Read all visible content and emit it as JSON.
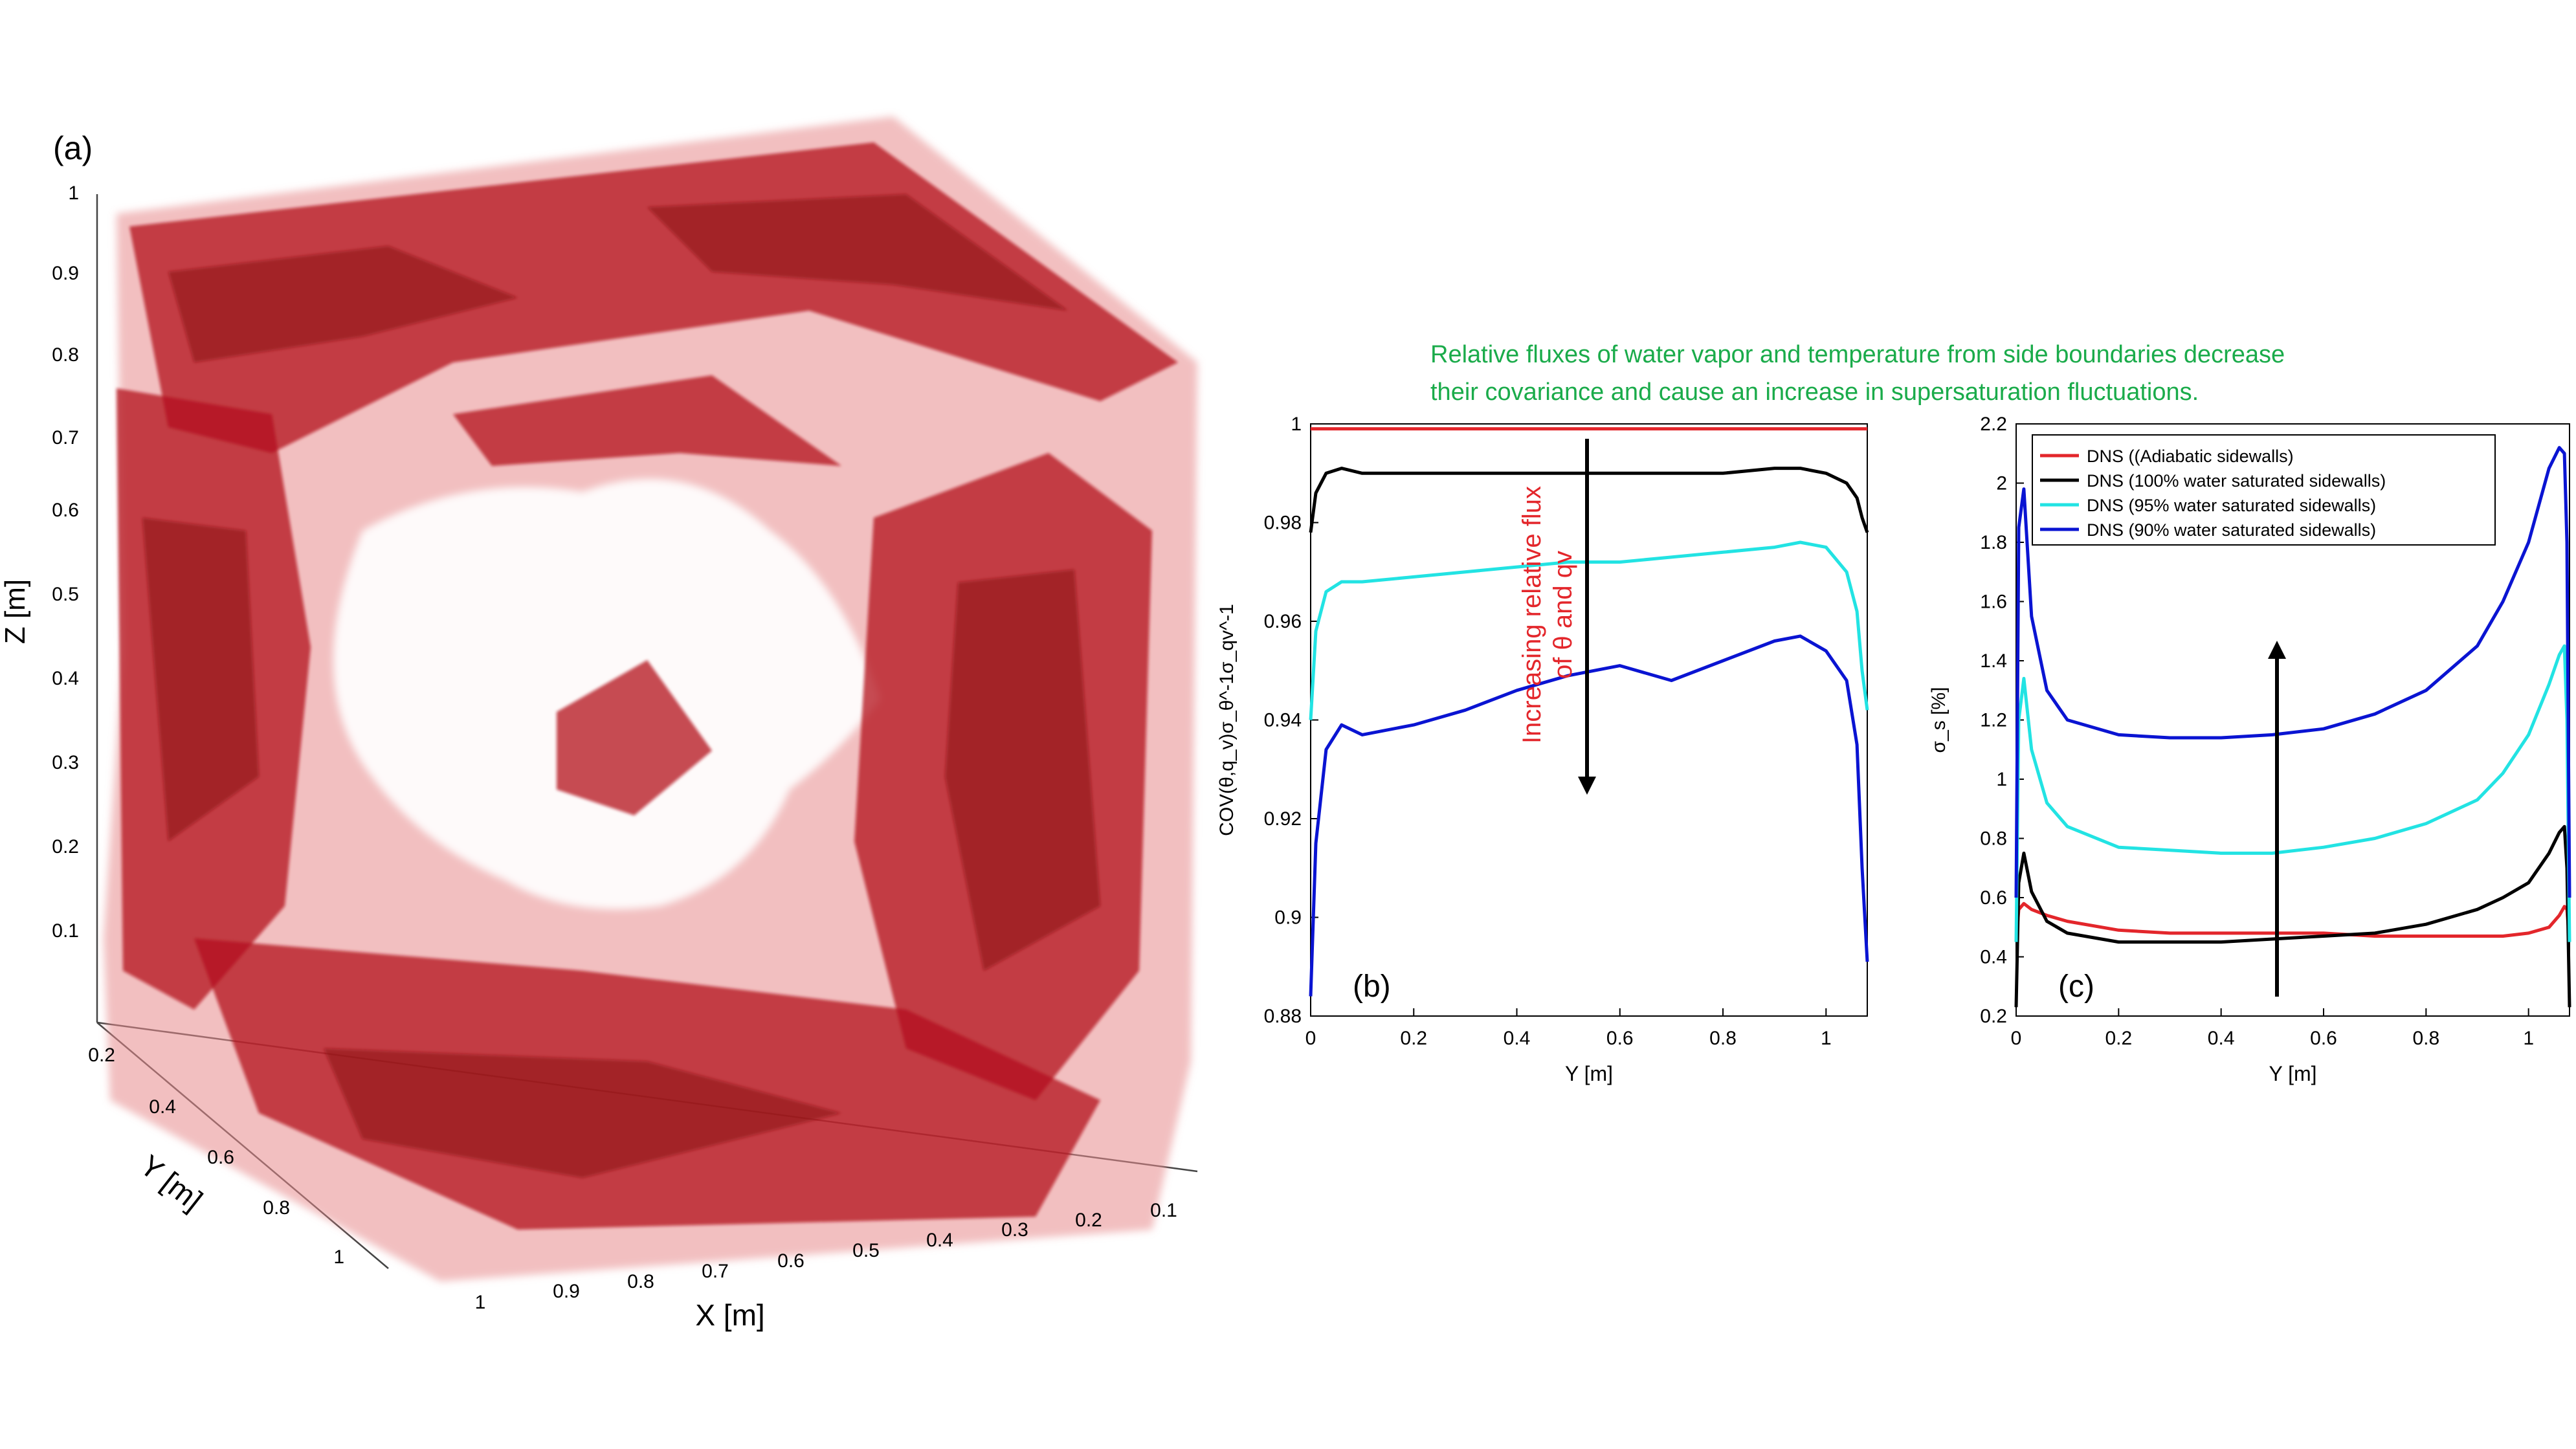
{
  "panels": {
    "a": {
      "label": "(a)",
      "z_axis": {
        "label": "Z [m]",
        "ticks": [
          "0.1",
          "0.2",
          "0.3",
          "0.4",
          "0.5",
          "0.6",
          "0.7",
          "0.8",
          "0.9",
          "1"
        ]
      },
      "y_axis": {
        "label": "Y [m]",
        "ticks": [
          "0.2",
          "0.4",
          "0.6",
          "0.8",
          "1"
        ]
      },
      "x_axis": {
        "label": "X [m]",
        "ticks": [
          "1",
          "0.9",
          "0.8",
          "0.7",
          "0.6",
          "0.5",
          "0.4",
          "0.3",
          "0.2",
          "0.1"
        ]
      },
      "colors": {
        "iso_dark": "#c0141c",
        "iso_light": "#e88a8c"
      }
    },
    "b": {
      "label": "(b)",
      "arrow_text_1": "Increasing relative flux",
      "arrow_text_2": "of θ and qv"
    },
    "c": {
      "label": "(c)"
    }
  },
  "annotation": {
    "line1": "Relative fluxes of water vapor and temperature from side boundaries decrease",
    "line2": "their covariance and cause an increase in supersaturation fluctuations.",
    "color": "#1aab4a"
  },
  "chart_data": [
    {
      "type": "line",
      "panel": "b",
      "xlabel": "Y [m]",
      "ylabel": "COV(θ,q_v)σ_θ^-1σ_qv^-1",
      "xlim": [
        0,
        1.08
      ],
      "ylim": [
        0.88,
        1.0
      ],
      "xticks": [
        "0",
        "0.2",
        "0.4",
        "0.6",
        "0.8",
        "1"
      ],
      "yticks": [
        "0.88",
        "0.9",
        "0.92",
        "0.94",
        "0.96",
        "0.98",
        "1"
      ],
      "x": [
        0,
        0.01,
        0.03,
        0.06,
        0.1,
        0.2,
        0.3,
        0.4,
        0.5,
        0.6,
        0.7,
        0.8,
        0.9,
        0.95,
        1.0,
        1.04,
        1.06,
        1.07,
        1.08
      ],
      "series": [
        {
          "color": "#e3262b",
          "values": [
            0.999,
            0.999,
            0.999,
            0.999,
            0.999,
            0.999,
            0.999,
            0.999,
            0.999,
            0.999,
            0.999,
            0.999,
            0.999,
            0.999,
            0.999,
            0.999,
            0.999,
            0.999,
            0.999
          ]
        },
        {
          "color": "#000000",
          "values": [
            0.978,
            0.986,
            0.99,
            0.991,
            0.99,
            0.99,
            0.99,
            0.99,
            0.99,
            0.99,
            0.99,
            0.99,
            0.991,
            0.991,
            0.99,
            0.988,
            0.985,
            0.981,
            0.978
          ]
        },
        {
          "color": "#22e3e3",
          "values": [
            0.94,
            0.958,
            0.966,
            0.968,
            0.968,
            0.969,
            0.97,
            0.971,
            0.972,
            0.972,
            0.973,
            0.974,
            0.975,
            0.976,
            0.975,
            0.97,
            0.962,
            0.95,
            0.942
          ]
        },
        {
          "color": "#0a14d2",
          "values": [
            0.884,
            0.915,
            0.934,
            0.939,
            0.937,
            0.939,
            0.942,
            0.946,
            0.949,
            0.951,
            0.948,
            0.952,
            0.956,
            0.957,
            0.954,
            0.948,
            0.935,
            0.91,
            0.891
          ]
        }
      ]
    },
    {
      "type": "line",
      "panel": "c",
      "xlabel": "Y [m]",
      "ylabel": "σ_s [%]",
      "xlim": [
        0,
        1.08
      ],
      "ylim": [
        0.2,
        2.2
      ],
      "xticks": [
        "0",
        "0.2",
        "0.4",
        "0.6",
        "0.8",
        "1"
      ],
      "yticks": [
        "0.2",
        "0.4",
        "0.6",
        "0.8",
        "1",
        "1.2",
        "1.4",
        "1.6",
        "1.8",
        "2",
        "2.2"
      ],
      "legend": [
        "DNS ((Adiabatic sidewalls)",
        "DNS (100% water saturated sidewalls)",
        "DNS (95% water saturated sidewalls)",
        "DNS (90% water saturated sidewalls)"
      ],
      "legend_position": "top",
      "x": [
        0,
        0.005,
        0.015,
        0.03,
        0.06,
        0.1,
        0.2,
        0.3,
        0.4,
        0.5,
        0.6,
        0.7,
        0.8,
        0.9,
        0.95,
        1.0,
        1.04,
        1.06,
        1.07,
        1.075,
        1.08
      ],
      "series": [
        {
          "name": "DNS ((Adiabatic sidewalls)",
          "color": "#e3262b",
          "values": [
            0.45,
            0.56,
            0.58,
            0.56,
            0.54,
            0.52,
            0.49,
            0.48,
            0.48,
            0.48,
            0.48,
            0.47,
            0.47,
            0.47,
            0.47,
            0.48,
            0.5,
            0.54,
            0.57,
            0.56,
            0.45
          ]
        },
        {
          "name": "DNS (100% water saturated sidewalls)",
          "color": "#000000",
          "values": [
            0.23,
            0.65,
            0.75,
            0.62,
            0.52,
            0.48,
            0.45,
            0.45,
            0.45,
            0.46,
            0.47,
            0.48,
            0.51,
            0.56,
            0.6,
            0.65,
            0.75,
            0.82,
            0.84,
            0.7,
            0.23
          ]
        },
        {
          "name": "DNS (95% water saturated sidewalls)",
          "color": "#22e3e3",
          "values": [
            0.45,
            1.2,
            1.34,
            1.1,
            0.92,
            0.84,
            0.77,
            0.76,
            0.75,
            0.75,
            0.77,
            0.8,
            0.85,
            0.93,
            1.02,
            1.15,
            1.32,
            1.42,
            1.45,
            1.2,
            0.45
          ]
        },
        {
          "name": "DNS (90% water saturated sidewalls)",
          "color": "#0a14d2",
          "values": [
            0.6,
            1.85,
            1.98,
            1.55,
            1.3,
            1.2,
            1.15,
            1.14,
            1.14,
            1.15,
            1.17,
            1.22,
            1.3,
            1.45,
            1.6,
            1.8,
            2.05,
            2.12,
            2.1,
            1.8,
            0.6
          ]
        }
      ]
    }
  ]
}
